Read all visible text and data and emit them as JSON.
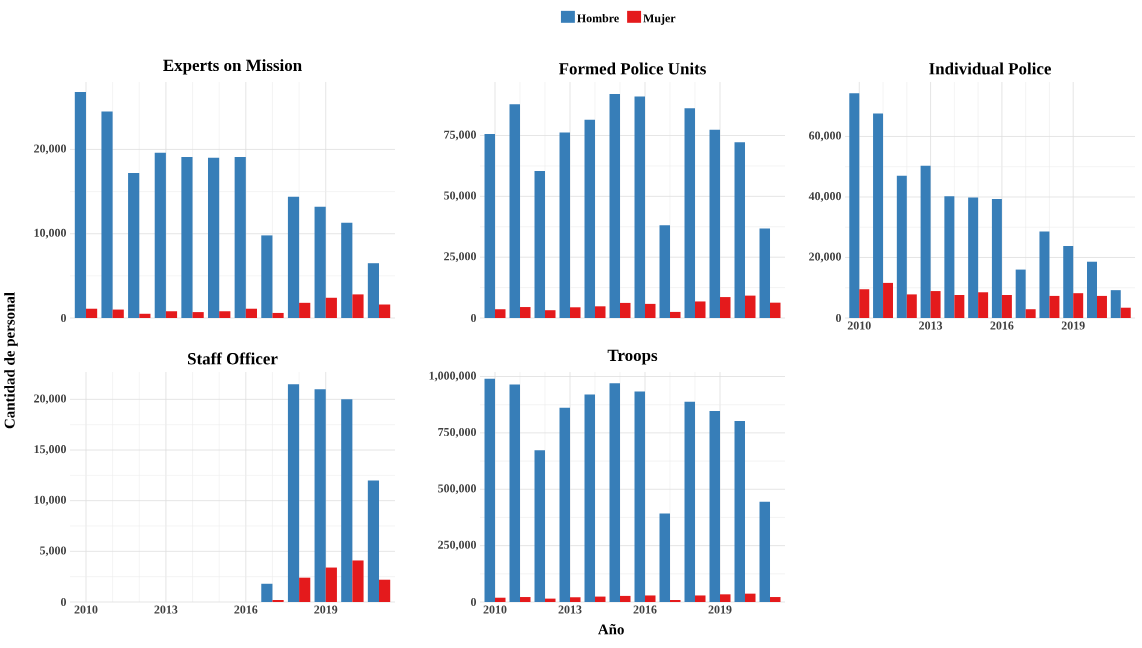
{
  "chart_data": [
    {
      "type": "bar",
      "title": "Experts on Mission",
      "x": [
        2010,
        2011,
        2012,
        2013,
        2014,
        2015,
        2016,
        2017,
        2018,
        2019,
        2020,
        2021
      ],
      "series": [
        {
          "name": "Hombre",
          "color": "#377eb8",
          "values": [
            26800,
            24500,
            17200,
            19600,
            19100,
            19000,
            19100,
            9800,
            14400,
            13200,
            11300,
            6500
          ]
        },
        {
          "name": "Mujer",
          "color": "#e41a1c",
          "values": [
            1100,
            1000,
            500,
            800,
            700,
            800,
            1100,
            600,
            1800,
            2400,
            2800,
            1600
          ]
        }
      ],
      "xlim": [
        2009.4,
        2021.6
      ],
      "xticks": [
        2010,
        2013,
        2016,
        2019
      ],
      "ylim": [
        0,
        28000
      ],
      "yticks": [
        {
          "value": 0,
          "label": "0"
        },
        {
          "value": 10000,
          "label": "10,000"
        },
        {
          "value": 20000,
          "label": "20,000"
        }
      ],
      "grid": true,
      "legend": "top",
      "tick_labels": "y"
    },
    {
      "type": "bar",
      "title": "Formed Police Units",
      "x": [
        2010,
        2011,
        2012,
        2013,
        2014,
        2015,
        2016,
        2017,
        2018,
        2019,
        2020,
        2021
      ],
      "series": [
        {
          "color": "#377eb8",
          "values": [
            75600,
            87900,
            60400,
            76200,
            81500,
            92100,
            91000,
            38100,
            86200,
            77400,
            72200,
            36800
          ]
        },
        {
          "color": "#e41a1c",
          "values": [
            3600,
            4500,
            3200,
            4400,
            4800,
            6200,
            5800,
            2500,
            6800,
            8600,
            9200,
            6300
          ]
        }
      ],
      "xlim": [
        2009.4,
        2021.6
      ],
      "xticks": [
        2010,
        2013,
        2016,
        2019
      ],
      "ylim": [
        0,
        97000
      ],
      "yticks": [
        {
          "value": 0,
          "label": "0"
        },
        {
          "value": 25000,
          "label": "25,000"
        },
        {
          "value": 50000,
          "label": "50,000"
        },
        {
          "value": 75000,
          "label": "75,000"
        }
      ],
      "grid": true,
      "tick_labels": "y"
    },
    {
      "type": "bar",
      "title": "Individual Police",
      "x": [
        2010,
        2011,
        2012,
        2013,
        2014,
        2015,
        2016,
        2017,
        2018,
        2019,
        2020,
        2021
      ],
      "series": [
        {
          "color": "#377eb8",
          "values": [
            74300,
            67600,
            47000,
            50300,
            40200,
            39800,
            39300,
            16000,
            28600,
            23800,
            18600,
            9200
          ]
        },
        {
          "color": "#e41a1c",
          "values": [
            9500,
            11600,
            7800,
            8900,
            7600,
            8500,
            7600,
            2900,
            7300,
            8200,
            7300,
            3400
          ]
        }
      ],
      "xlim": [
        2009.4,
        2021.6
      ],
      "xticks": [
        2010,
        2013,
        2016,
        2019
      ],
      "ylim": [
        0,
        78000
      ],
      "yticks": [
        {
          "value": 0,
          "label": "0"
        },
        {
          "value": 20000,
          "label": "20,000"
        },
        {
          "value": 40000,
          "label": "40,000"
        },
        {
          "value": 60000,
          "label": "60,000"
        }
      ],
      "grid": true
    },
    {
      "type": "bar",
      "title": "Staff Officer",
      "ylabel": "Cantidad de personal",
      "x": [
        2017,
        2018,
        2019,
        2020,
        2021
      ],
      "series": [
        {
          "color": "#377eb8",
          "values": [
            1800,
            21500,
            21000,
            20000,
            12000
          ]
        },
        {
          "color": "#e41a1c",
          "values": [
            200,
            2400,
            3400,
            4100,
            2200
          ]
        }
      ],
      "xlim": [
        2009.4,
        2021.6
      ],
      "xticks": [
        2010,
        2013,
        2016,
        2019
      ],
      "ylim": [
        0,
        22700
      ],
      "yticks": [
        {
          "value": 0,
          "label": "0"
        },
        {
          "value": 5000,
          "label": "5,000"
        },
        {
          "value": 10000,
          "label": "10,000"
        },
        {
          "value": 15000,
          "label": "15,000"
        },
        {
          "value": 20000,
          "label": "20,000"
        }
      ],
      "grid": true
    },
    {
      "type": "bar",
      "title": "Troops",
      "xlabel": "Año",
      "x": [
        2010,
        2011,
        2012,
        2013,
        2014,
        2015,
        2016,
        2017,
        2018,
        2019,
        2020,
        2021
      ],
      "series": [
        {
          "color": "#377eb8",
          "values": [
            990000,
            965000,
            673000,
            862000,
            920000,
            970000,
            934000,
            393000,
            888000,
            847000,
            803000,
            445000
          ]
        },
        {
          "color": "#e41a1c",
          "values": [
            19000,
            22000,
            15000,
            21000,
            24000,
            27000,
            29000,
            9000,
            29000,
            34000,
            37000,
            22000
          ]
        }
      ],
      "xlim": [
        2009.4,
        2021.6
      ],
      "xticks": [
        2010,
        2013,
        2016,
        2019
      ],
      "ylim": [
        0,
        1020000
      ],
      "yticks": [
        {
          "value": 0,
          "label": "0"
        },
        {
          "value": 250000,
          "label": "250,000"
        },
        {
          "value": 500000,
          "label": "500,000"
        },
        {
          "value": 750000,
          "label": "750,000"
        },
        {
          "value": 1000000,
          "label": "1,000,000"
        }
      ],
      "grid": true
    }
  ]
}
